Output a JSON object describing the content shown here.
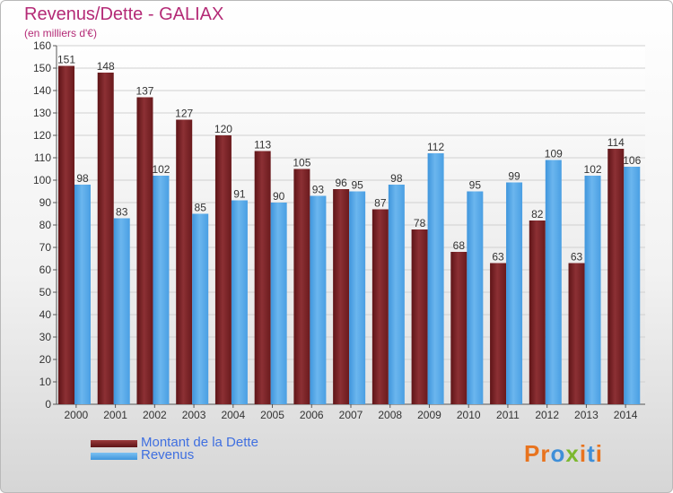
{
  "title": "Revenus/Dette - GALIAX",
  "subtitle": "(en milliers d'€)",
  "brand": {
    "text": "Proxiti",
    "letter_colors": [
      "#e8731e",
      "#e8731e",
      "#3f8fd8",
      "#7cb82f",
      "#e8731e",
      "#3f8fd8",
      "#e8731e"
    ]
  },
  "colors": {
    "debt": "#7a1e22",
    "debt_light": "#9a3a3c",
    "revenue": "#4a9fe3",
    "revenue_light": "#66b4ef",
    "title": "#b42a76",
    "legend_text": "#3f6fe0"
  },
  "chart_data": {
    "type": "bar",
    "categories": [
      "2000",
      "2001",
      "2002",
      "2003",
      "2004",
      "2005",
      "2006",
      "2007",
      "2008",
      "2009",
      "2010",
      "2011",
      "2012",
      "2013",
      "2014"
    ],
    "series": [
      {
        "name": "Montant de la Dette",
        "values": [
          151,
          148,
          137,
          127,
          120,
          113,
          105,
          96,
          87,
          78,
          68,
          63,
          82,
          63,
          114
        ]
      },
      {
        "name": "Revenus",
        "values": [
          98,
          83,
          102,
          85,
          91,
          90,
          93,
          95,
          98,
          112,
          95,
          99,
          109,
          102,
          106
        ]
      }
    ],
    "yticks": [
      0,
      10,
      20,
      30,
      40,
      50,
      60,
      70,
      80,
      90,
      100,
      110,
      120,
      130,
      140,
      150,
      160
    ],
    "ylim": [
      0,
      160
    ],
    "grid": true,
    "legend_position": "bottom-left",
    "data_labels": true
  }
}
